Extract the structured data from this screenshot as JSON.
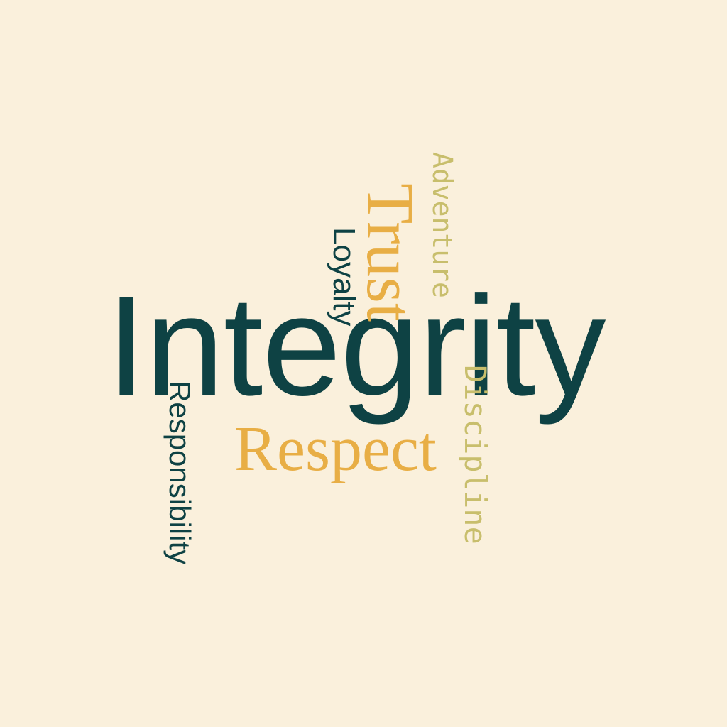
{
  "background_color": "#FAF0DC",
  "colors": {
    "dark_teal": "#0E4244",
    "gold": "#E8AE45",
    "olive": "#C8BE6C"
  },
  "words": {
    "integrity": {
      "text": "Integrity",
      "color": "#0E4244"
    },
    "respect": {
      "text": "Respect",
      "color": "#E8AE45"
    },
    "trust": {
      "text": "Trust",
      "color": "#E8AE45"
    },
    "loyalty": {
      "text": "Loyalty",
      "color": "#0E4244"
    },
    "adventure": {
      "text": "Adventure",
      "color": "#C8BE6C"
    },
    "discipline": {
      "text": "Discipline",
      "color": "#C8BE6C"
    },
    "responsibility": {
      "text": "Responsibility",
      "color": "#0E4244"
    }
  }
}
